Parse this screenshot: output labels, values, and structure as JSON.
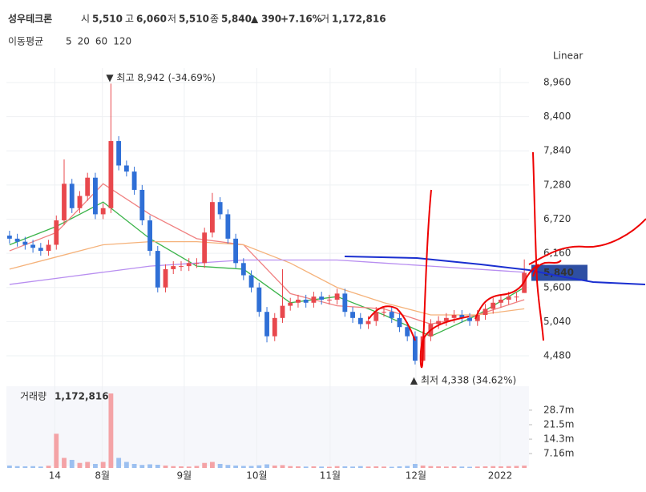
{
  "header": {
    "name": "성우테크론",
    "open_label": "시",
    "open": "5,510",
    "high_label": "고",
    "high": "6,060",
    "low_label": "저",
    "low": "5,510",
    "close_label": "종",
    "close": "5,840",
    "arrow": "▲",
    "change": "390",
    "change_pct": "+7.16%",
    "volume_label": "거",
    "volume": "1,172,816",
    "ma_label": "이동평균",
    "scale": "Linear"
  },
  "chart_data": [
    {
      "type": "candlestick",
      "up_color": "#e8484d",
      "down_color": "#2f6fd6",
      "ylim": [
        4073,
        9196
      ],
      "xlim": [
        -0.4,
        66.6
      ],
      "yticks": [
        {
          "value": 8960,
          "label": "8,960"
        },
        {
          "value": 8400,
          "label": "8,400"
        },
        {
          "value": 7840,
          "label": "7,840"
        },
        {
          "value": 7280,
          "label": "7,280"
        },
        {
          "value": 6720,
          "label": "6,720"
        },
        {
          "value": 6160,
          "label": "6,160"
        },
        {
          "value": 5600,
          "label": "5,600"
        },
        {
          "value": 5040,
          "label": "5,040"
        },
        {
          "value": 4480,
          "label": "4,480"
        }
      ],
      "xticks": [
        {
          "value": 5.8,
          "label": "14"
        },
        {
          "value": 11.9,
          "label": "8월"
        },
        {
          "value": 22.4,
          "label": "9월"
        },
        {
          "value": 31.7,
          "label": "10월"
        },
        {
          "value": 41.1,
          "label": "11월"
        },
        {
          "value": 52.1,
          "label": "12월"
        },
        {
          "value": 62.9,
          "label": "2022"
        }
      ],
      "grid": true,
      "open": [
        6450,
        6400,
        6350,
        6300,
        6250,
        6200,
        6300,
        6700,
        7300,
        6900,
        7100,
        7400,
        6800,
        6900,
        8000,
        7600,
        7500,
        7200,
        6700,
        6200,
        5600,
        5900,
        5950,
        5950,
        6000,
        6000,
        6500,
        7000,
        6800,
        6400,
        6000,
        5800,
        5600,
        5200,
        4800,
        5100,
        5300,
        5350,
        5400,
        5350,
        5450,
        5400,
        5400,
        5500,
        5200,
        5100,
        5000,
        5050,
        5200,
        5200,
        5100,
        4950,
        4800,
        4400,
        4800,
        5000,
        5050,
        5100,
        5150,
        5100,
        5050,
        5150,
        5250,
        5350,
        5400,
        5450,
        5510
      ],
      "high": [
        6530,
        6480,
        6430,
        6380,
        6330,
        6380,
        6780,
        7700,
        7380,
        7180,
        7480,
        7480,
        6980,
        8942,
        8080,
        7680,
        7580,
        7280,
        6780,
        6280,
        5980,
        6030,
        6030,
        6080,
        6080,
        6580,
        7150,
        7080,
        6880,
        6480,
        6080,
        5880,
        5680,
        5280,
        5180,
        5900,
        5430,
        5480,
        5480,
        5530,
        5530,
        5480,
        5580,
        5580,
        5280,
        5180,
        5130,
        5280,
        5280,
        5280,
        5180,
        5030,
        4880,
        4880,
        5080,
        5130,
        5180,
        5230,
        5230,
        5180,
        5230,
        5330,
        5430,
        5480,
        5530,
        5530,
        6060
      ],
      "low": [
        6320,
        6270,
        6220,
        6170,
        6120,
        6120,
        6220,
        6620,
        6820,
        6820,
        7020,
        6720,
        6720,
        6820,
        7520,
        7420,
        7120,
        6620,
        6120,
        5520,
        5520,
        5820,
        5870,
        5870,
        5920,
        5920,
        6420,
        6720,
        6320,
        5920,
        5720,
        5520,
        5120,
        4700,
        4720,
        5020,
        5220,
        5270,
        5270,
        5270,
        5320,
        5320,
        5320,
        5120,
        5020,
        4920,
        4920,
        4970,
        5120,
        5020,
        4870,
        4720,
        4338,
        4380,
        4720,
        4920,
        4970,
        5020,
        5020,
        4970,
        4970,
        5070,
        5170,
        5270,
        5320,
        5370,
        5510
      ],
      "close": [
        6400,
        6350,
        6300,
        6250,
        6200,
        6300,
        6700,
        7300,
        6900,
        7100,
        7400,
        6800,
        6900,
        8000,
        7600,
        7500,
        7200,
        6700,
        6200,
        5600,
        5900,
        5950,
        5950,
        6000,
        6000,
        6500,
        7000,
        6800,
        6400,
        6000,
        5800,
        5600,
        5200,
        4800,
        5100,
        5300,
        5350,
        5400,
        5350,
        5450,
        5400,
        5400,
        5500,
        5200,
        5100,
        5000,
        5050,
        5200,
        5200,
        5100,
        4950,
        4800,
        4400,
        4800,
        5000,
        5050,
        5100,
        5150,
        5100,
        5050,
        5150,
        5250,
        5350,
        5400,
        5450,
        5450,
        5840
      ],
      "ma_x": [
        0,
        6,
        12,
        18,
        24,
        30,
        36,
        42,
        48,
        54,
        60,
        66
      ],
      "moving_averages": [
        {
          "name": "5",
          "color": "#3cb44b",
          "values": [
            6300,
            6600,
            7000,
            6400,
            5950,
            5900,
            5350,
            5450,
            5150,
            4800,
            5150,
            5600
          ]
        },
        {
          "name": "20",
          "color": "#f08080",
          "values": [
            6200,
            6500,
            7300,
            6800,
            6400,
            6300,
            5500,
            5300,
            5250,
            5000,
            5150,
            5400
          ]
        },
        {
          "name": "60",
          "color": "#f5b27a",
          "values": [
            5900,
            6100,
            6300,
            6350,
            6350,
            6300,
            6000,
            5600,
            5350,
            5150,
            5150,
            5250
          ]
        },
        {
          "name": "120",
          "color": "#b88ef0",
          "values": [
            5650,
            5750,
            5850,
            5950,
            6000,
            6050,
            6050,
            6050,
            6000,
            5950,
            5900,
            5850
          ]
        }
      ],
      "annotations": [
        "▼ 최고 8,942 (-34.69%)",
        "▲ 최저 4,338 (34.62%)"
      ]
    },
    {
      "type": "bar",
      "title": "거래량",
      "ylim": [
        0,
        40.6
      ],
      "yticks": [
        {
          "value": 28.7,
          "label": "28.7m"
        },
        {
          "value": 21.5,
          "label": "21.5m"
        },
        {
          "value": 14.3,
          "label": "14.3m"
        },
        {
          "value": 7.16,
          "label": "7.16m"
        }
      ],
      "up_color": "#f4a3a6",
      "down_color": "#9cc0f0",
      "values": [
        1.2,
        0.9,
        0.8,
        0.9,
        0.7,
        1.1,
        17,
        5,
        4,
        2.5,
        3,
        2,
        3,
        37,
        5,
        3,
        2,
        1.5,
        1.8,
        1.6,
        1.2,
        0.9,
        0.8,
        0.7,
        1,
        2.5,
        3,
        2,
        1.5,
        1.2,
        1,
        1,
        1.3,
        1.8,
        1.2,
        1.4,
        0.9,
        0.8,
        0.7,
        0.8,
        0.7,
        0.6,
        0.9,
        0.8,
        0.7,
        0.9,
        0.7,
        0.8,
        0.7,
        0.6,
        0.8,
        1,
        2,
        1.2,
        0.9,
        0.8,
        0.7,
        0.8,
        0.7,
        0.6,
        0.7,
        0.8,
        0.9,
        0.8,
        0.9,
        1,
        1.17
      ]
    }
  ]
}
